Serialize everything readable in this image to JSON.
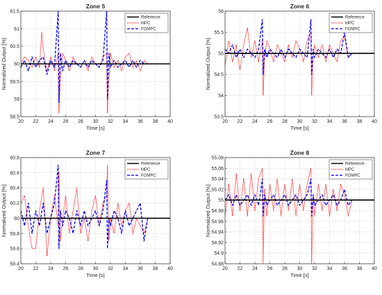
{
  "chart_data": [
    {
      "type": "line",
      "title": "Zone 5",
      "xlabel": "Time [s]",
      "ylabel": "Normalized Output [%]",
      "xlim": [
        20,
        40
      ],
      "ylim": [
        58.5,
        61.5
      ],
      "xticks": [
        "20",
        "22",
        "24",
        "26",
        "28",
        "30",
        "32",
        "34",
        "36",
        "38",
        "40"
      ],
      "yticks": [
        "58.5",
        "59",
        "59.5",
        "60",
        "60.5",
        "61",
        "61.5"
      ],
      "grid": true,
      "legend_position": "top-right",
      "legend": [
        "Reference",
        "MPC",
        "FOMPC"
      ],
      "series": [
        {
          "name": "Reference",
          "x": [
            20,
            40
          ],
          "y": [
            60,
            60
          ]
        },
        {
          "name": "MPC",
          "x": [
            20,
            20.5,
            21,
            21.5,
            22,
            22.5,
            22.8,
            23,
            23.5,
            24,
            24.5,
            25,
            25.1,
            25.3,
            25.6,
            26,
            26.5,
            27,
            27.5,
            28,
            28.5,
            29,
            29.5,
            30,
            30.5,
            31,
            31.5,
            31.6,
            31.8,
            32,
            32.5,
            33,
            33.5,
            34,
            34.5,
            35,
            35.5,
            36,
            36.5,
            37,
            37.5
          ],
          "y": [
            60,
            60.2,
            60.1,
            59.9,
            60.2,
            59.9,
            60.9,
            60.4,
            59.8,
            60.2,
            59.8,
            60.3,
            58.6,
            59.6,
            60.3,
            60.1,
            59.8,
            60.2,
            60.0,
            59.9,
            60.1,
            59.8,
            60.2,
            60.0,
            59.9,
            60.2,
            60.3,
            58.6,
            59.6,
            60.3,
            59.9,
            60.1,
            59.8,
            60.2,
            60.3,
            59.9,
            60.1,
            59.8,
            60.1,
            60.0,
            60.0
          ]
        },
        {
          "name": "FOMPC",
          "x": [
            20,
            20.5,
            21,
            21.5,
            22,
            22.5,
            23,
            23.5,
            24,
            24.5,
            25,
            25.1,
            25.3,
            25.6,
            26,
            26.5,
            27,
            27.5,
            28,
            28.5,
            29,
            29.5,
            30,
            30.5,
            31,
            31.5,
            31.6,
            31.8,
            32,
            32.5,
            33,
            33.5,
            34,
            34.5,
            35,
            35.5,
            36,
            36.5,
            37
          ],
          "y": [
            59.9,
            60.1,
            59.8,
            60.2,
            59.9,
            60.1,
            60.2,
            59.7,
            60.1,
            59.9,
            61.5,
            58.9,
            60.3,
            59.8,
            60.1,
            59.9,
            60.1,
            60.0,
            59.9,
            60.1,
            59.9,
            60.1,
            60.0,
            59.9,
            60.1,
            61.5,
            59.0,
            60.3,
            59.9,
            60.1,
            59.9,
            60.0,
            60.1,
            59.9,
            60.1,
            59.9,
            60.1,
            60.0,
            60.0
          ]
        }
      ]
    },
    {
      "type": "line",
      "title": "Zone 6",
      "xlabel": "Time [s]",
      "ylabel": "Normalized Output [%]",
      "xlim": [
        20,
        40
      ],
      "ylim": [
        53.5,
        56
      ],
      "xticks": [
        "20",
        "22",
        "24",
        "26",
        "28",
        "30",
        "32",
        "34",
        "36",
        "38",
        "40"
      ],
      "yticks": [
        "53.5",
        "54",
        "54.5",
        "55",
        "55.5",
        "56"
      ],
      "grid": true,
      "legend_position": "top-right",
      "legend": [
        "Reference",
        "MPC",
        "FOMPC"
      ],
      "series": [
        {
          "name": "Reference",
          "x": [
            20,
            40
          ],
          "y": [
            55,
            55
          ]
        },
        {
          "name": "MPC",
          "x": [
            20,
            20.5,
            21,
            21.5,
            22,
            22.5,
            23,
            23.5,
            24,
            24.5,
            25,
            25.1,
            25.3,
            25.6,
            26,
            26.5,
            27,
            27.5,
            28,
            28.5,
            29,
            29.5,
            30,
            30.5,
            31,
            31.5,
            31.6,
            31.8,
            32,
            32.5,
            33,
            33.5,
            34,
            34.5,
            35,
            35.5,
            36,
            36.5,
            37
          ],
          "y": [
            54.7,
            55.3,
            54.8,
            55.2,
            54.6,
            55.2,
            55.6,
            54.9,
            55.3,
            54.8,
            55.3,
            54.0,
            54.9,
            55.3,
            55.1,
            54.8,
            55.2,
            55.0,
            54.8,
            55.2,
            54.9,
            55.3,
            55.1,
            54.8,
            55.3,
            55.5,
            54.0,
            54.9,
            55.2,
            54.9,
            55.2,
            54.8,
            55.2,
            55.0,
            54.8,
            55.3,
            55.4,
            54.9,
            55.0
          ]
        },
        {
          "name": "FOMPC",
          "x": [
            20,
            20.5,
            21,
            21.5,
            22,
            22.5,
            23,
            23.5,
            24,
            24.5,
            25,
            25.1,
            25.3,
            25.6,
            26,
            26.5,
            27,
            27.5,
            28,
            28.5,
            29,
            29.5,
            30,
            30.5,
            31,
            31.5,
            31.6,
            31.8,
            32,
            32.5,
            33,
            33.5,
            34,
            34.5,
            35,
            35.5,
            36,
            36.5,
            37
          ],
          "y": [
            55.1,
            55.0,
            55.2,
            54.9,
            55.1,
            54.9,
            55.1,
            55.0,
            54.9,
            55.1,
            55.8,
            54.5,
            55.1,
            54.9,
            55.1,
            55.0,
            54.9,
            55.1,
            54.9,
            55.1,
            55.0,
            54.9,
            55.1,
            55.0,
            54.9,
            55.8,
            54.5,
            55.1,
            54.9,
            55.1,
            55.0,
            54.9,
            55.1,
            54.9,
            55.1,
            55.0,
            55.5,
            54.9,
            55.0
          ]
        }
      ]
    },
    {
      "type": "line",
      "title": "Zone 7",
      "xlabel": "Time [s]",
      "ylabel": "Normalized Output [%]",
      "xlim": [
        20,
        40
      ],
      "ylim": [
        59.4,
        60.8
      ],
      "xticks": [
        "20",
        "22",
        "24",
        "26",
        "28",
        "30",
        "32",
        "34",
        "36",
        "38",
        "40"
      ],
      "yticks": [
        "59.4",
        "59.6",
        "59.8",
        "60",
        "60.2",
        "60.4",
        "60.6",
        "60.8"
      ],
      "grid": true,
      "legend_position": "top-right",
      "legend": [
        "Reference",
        "MPC",
        "FOMPC"
      ],
      "series": [
        {
          "name": "Reference",
          "x": [
            20,
            40
          ],
          "y": [
            60,
            60
          ]
        },
        {
          "name": "MPC",
          "x": [
            20,
            20.5,
            21,
            21.5,
            22,
            22.5,
            23,
            23.5,
            24,
            24.5,
            25,
            25.1,
            25.3,
            25.6,
            26,
            26.5,
            27,
            27.5,
            28,
            28.5,
            29,
            29.5,
            30,
            30.5,
            31,
            31.5,
            31.6,
            31.8,
            32,
            32.5,
            33,
            33.5,
            34,
            34.5,
            35,
            35.5,
            36,
            36.5,
            37,
            38
          ],
          "y": [
            60.2,
            60.3,
            59.9,
            59.6,
            59.6,
            60.1,
            60.4,
            59.5,
            60.0,
            60.3,
            59.9,
            60.6,
            59.7,
            60.0,
            60.3,
            59.8,
            60.1,
            60.4,
            59.8,
            60.0,
            59.7,
            60.1,
            60.3,
            59.9,
            60.2,
            60.3,
            60.7,
            59.7,
            60.0,
            59.8,
            60.2,
            59.9,
            60.1,
            60.2,
            59.8,
            60.0,
            59.9,
            59.8,
            60.0,
            60.0
          ]
        },
        {
          "name": "FOMPC",
          "x": [
            20,
            20.5,
            21,
            21.5,
            22,
            22.5,
            23,
            23.5,
            24,
            24.5,
            25,
            25.1,
            25.3,
            25.6,
            26,
            26.5,
            27,
            27.5,
            28,
            28.5,
            29,
            29.5,
            30,
            30.5,
            31,
            31.5,
            31.6,
            31.8,
            32,
            32.5,
            33,
            33.5,
            34,
            34.5,
            35,
            35.5,
            36,
            36.5,
            37
          ],
          "y": [
            60.1,
            59.9,
            60.2,
            59.8,
            60.1,
            59.9,
            60.2,
            59.8,
            60.0,
            60.2,
            60.7,
            59.6,
            60.1,
            59.9,
            60.1,
            60.0,
            59.8,
            60.1,
            59.9,
            60.1,
            59.9,
            60.0,
            60.1,
            59.9,
            60.1,
            60.5,
            59.6,
            60.0,
            59.9,
            60.1,
            60.0,
            59.8,
            60.1,
            59.9,
            60.0,
            60.1,
            60.2,
            59.7,
            60.0
          ]
        }
      ]
    },
    {
      "type": "line",
      "title": "Zone 8",
      "xlabel": "Time [s]",
      "ylabel": "Normalized Output [%]",
      "xlim": [
        20,
        40
      ],
      "ylim": [
        54.88,
        55.08
      ],
      "xticks": [
        "20",
        "22",
        "24",
        "26",
        "28",
        "30",
        "32",
        "34",
        "36",
        "38",
        "40"
      ],
      "yticks": [
        "54.88",
        "54.9",
        "54.92",
        "54.94",
        "54.96",
        "54.98",
        "55",
        "55.02",
        "55.04",
        "55.06",
        "55.08"
      ],
      "grid": true,
      "legend_position": "top-right",
      "legend": [
        "Reference",
        "MPC",
        "FOMPC"
      ],
      "series": [
        {
          "name": "Reference",
          "x": [
            20,
            40
          ],
          "y": [
            55,
            55
          ]
        },
        {
          "name": "MPC",
          "x": [
            20,
            20.5,
            21,
            21.5,
            22,
            22.5,
            23,
            23.5,
            24,
            24.5,
            25,
            25.1,
            25.3,
            25.6,
            26,
            26.5,
            27,
            27.5,
            28,
            28.5,
            29,
            29.5,
            30,
            30.5,
            31,
            31.5,
            31.6,
            31.8,
            32,
            32.5,
            33,
            33.5,
            34,
            34.5,
            35,
            35.5,
            36,
            36.5,
            37
          ],
          "y": [
            54.97,
            55.03,
            54.97,
            55.05,
            54.98,
            55.04,
            54.97,
            55.05,
            54.98,
            55.04,
            55.06,
            54.88,
            55.02,
            54.97,
            55.03,
            54.98,
            55.04,
            54.97,
            55.03,
            54.98,
            55.04,
            54.97,
            55.03,
            54.98,
            55.03,
            55.06,
            54.88,
            55.01,
            54.97,
            55.03,
            54.98,
            55.03,
            54.97,
            55.02,
            54.98,
            55.03,
            55.01,
            54.97,
            55.0
          ]
        },
        {
          "name": "FOMPC",
          "x": [
            20,
            20.5,
            21,
            21.5,
            22,
            22.5,
            23,
            23.5,
            24,
            24.5,
            25,
            25.1,
            25.3,
            25.6,
            26,
            26.5,
            27,
            27.5,
            28,
            28.5,
            29,
            29.5,
            30,
            30.5,
            31,
            31.5,
            31.6,
            31.8,
            32,
            32.5,
            33,
            33.5,
            34,
            34.5,
            35,
            35.5,
            36,
            36.5,
            37
          ],
          "y": [
            55.0,
            55.01,
            54.99,
            55.01,
            54.99,
            55.0,
            55.01,
            54.99,
            55.01,
            54.99,
            55.04,
            54.97,
            55.01,
            54.99,
            55.0,
            55.01,
            54.99,
            55.0,
            55.01,
            54.99,
            55.0,
            55.01,
            54.99,
            55.0,
            55.01,
            55.04,
            54.97,
            55.01,
            54.99,
            55.0,
            55.01,
            54.99,
            55.0,
            55.01,
            54.99,
            55.0,
            55.02,
            54.99,
            55.0
          ]
        }
      ]
    }
  ],
  "colors": {
    "reference": "#000000",
    "mpc": "#ff0000",
    "fompc": "#0000ff",
    "grid": "#e2e2e2",
    "axis": "#262626"
  }
}
